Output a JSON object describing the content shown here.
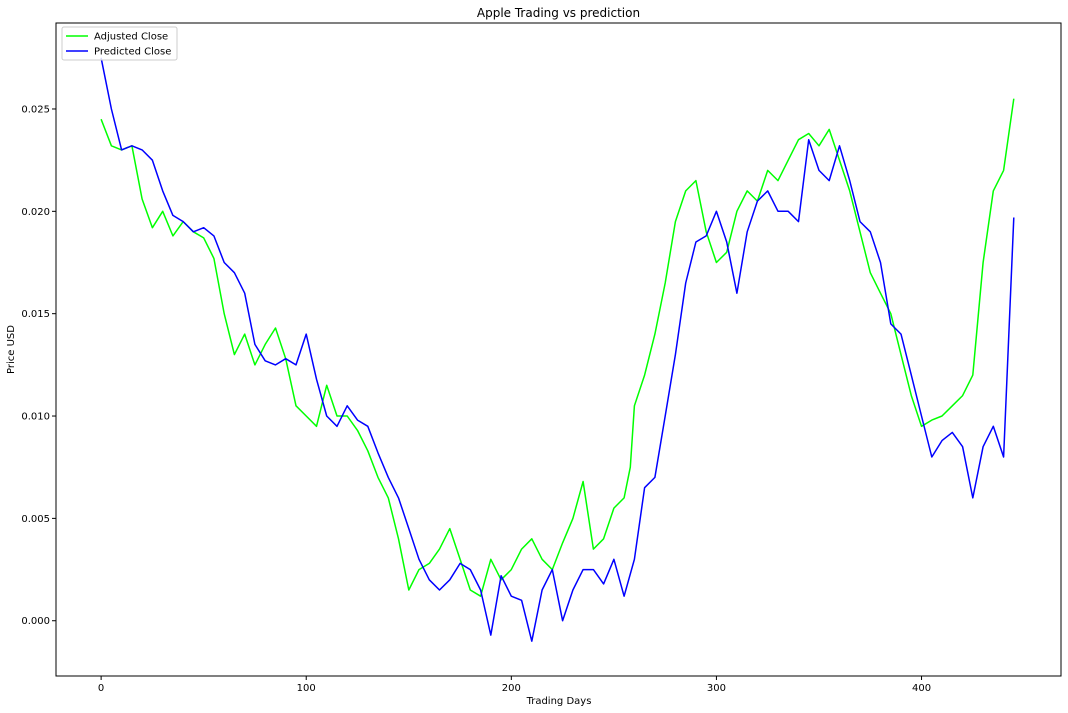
{
  "chart_data": {
    "type": "line",
    "title": "Apple Trading vs prediction",
    "xlabel": "Trading Days",
    "ylabel": "Price USD",
    "xlim": [
      -22,
      468
    ],
    "ylim": [
      -0.0027,
      0.0292
    ],
    "xticks": [
      0,
      100,
      200,
      300,
      400
    ],
    "yticks": [
      0.0,
      0.005,
      0.01,
      0.015,
      0.02,
      0.025
    ],
    "xtick_labels": [
      "0",
      "100",
      "200",
      "300",
      "400"
    ],
    "ytick_labels": [
      "0.000",
      "0.005",
      "0.010",
      "0.015",
      "0.020",
      "0.025"
    ],
    "legend_position": "upper-left",
    "grid": false,
    "series": [
      {
        "name": "Adjusted Close",
        "color": "#00ff00",
        "x": [
          0,
          5,
          10,
          15,
          20,
          25,
          30,
          35,
          40,
          45,
          50,
          55,
          60,
          65,
          70,
          75,
          80,
          85,
          90,
          95,
          100,
          105,
          110,
          115,
          120,
          125,
          130,
          135,
          140,
          145,
          150,
          155,
          160,
          165,
          170,
          175,
          180,
          185,
          190,
          195,
          200,
          205,
          210,
          215,
          220,
          225,
          230,
          235,
          240,
          245,
          250,
          255,
          258,
          260,
          265,
          270,
          275,
          280,
          285,
          290,
          295,
          300,
          305,
          310,
          315,
          320,
          325,
          330,
          335,
          340,
          345,
          350,
          355,
          360,
          365,
          370,
          375,
          380,
          385,
          390,
          395,
          400,
          405,
          410,
          415,
          420,
          425,
          430,
          435,
          440,
          445
        ],
        "y": [
          0.0245,
          0.0232,
          0.023,
          0.0232,
          0.0206,
          0.0192,
          0.02,
          0.0188,
          0.0195,
          0.019,
          0.0187,
          0.0177,
          0.015,
          0.013,
          0.014,
          0.0125,
          0.0135,
          0.0143,
          0.0128,
          0.0105,
          0.01,
          0.0095,
          0.0115,
          0.01,
          0.01,
          0.0093,
          0.0083,
          0.007,
          0.006,
          0.004,
          0.0015,
          0.0025,
          0.0028,
          0.0035,
          0.0045,
          0.003,
          0.0015,
          0.0012,
          0.003,
          0.002,
          0.0025,
          0.0035,
          0.004,
          0.003,
          0.0025,
          0.0038,
          0.005,
          0.0068,
          0.0035,
          0.004,
          0.0055,
          0.006,
          0.0075,
          0.0105,
          0.012,
          0.014,
          0.0165,
          0.0195,
          0.021,
          0.0215,
          0.019,
          0.0175,
          0.018,
          0.02,
          0.021,
          0.0205,
          0.022,
          0.0215,
          0.0225,
          0.0235,
          0.0238,
          0.0232,
          0.024,
          0.0225,
          0.021,
          0.019,
          0.017,
          0.016,
          0.015,
          0.013,
          0.011,
          0.0095,
          0.0098,
          0.01,
          0.0105,
          0.011,
          0.012,
          0.0175,
          0.021,
          0.022,
          0.0255
        ]
      },
      {
        "name": "Predicted Close",
        "color": "#0000ff",
        "x": [
          0,
          5,
          10,
          15,
          20,
          25,
          30,
          35,
          40,
          45,
          50,
          55,
          60,
          65,
          70,
          75,
          80,
          85,
          90,
          95,
          100,
          105,
          110,
          115,
          120,
          125,
          130,
          135,
          140,
          145,
          150,
          155,
          160,
          165,
          170,
          175,
          180,
          185,
          190,
          195,
          200,
          205,
          210,
          215,
          220,
          225,
          230,
          235,
          240,
          245,
          250,
          255,
          260,
          265,
          270,
          275,
          280,
          285,
          290,
          295,
          300,
          305,
          310,
          315,
          320,
          325,
          330,
          335,
          340,
          345,
          350,
          355,
          360,
          365,
          370,
          375,
          380,
          385,
          390,
          395,
          400,
          405,
          410,
          415,
          420,
          425,
          430,
          435,
          440,
          445
        ],
        "y": [
          0.0275,
          0.025,
          0.023,
          0.0232,
          0.023,
          0.0225,
          0.021,
          0.0198,
          0.0195,
          0.019,
          0.0192,
          0.0188,
          0.0175,
          0.017,
          0.016,
          0.0135,
          0.0127,
          0.0125,
          0.0128,
          0.0125,
          0.014,
          0.0118,
          0.01,
          0.0095,
          0.0105,
          0.0098,
          0.0095,
          0.0082,
          0.007,
          0.006,
          0.0045,
          0.003,
          0.002,
          0.0015,
          0.002,
          0.0028,
          0.0025,
          0.0015,
          -0.0007,
          0.0022,
          0.0012,
          0.001,
          -0.001,
          0.0015,
          0.0025,
          0.0,
          0.0015,
          0.0025,
          0.0025,
          0.0018,
          0.003,
          0.0012,
          0.003,
          0.0065,
          0.007,
          0.01,
          0.013,
          0.0165,
          0.0185,
          0.0188,
          0.02,
          0.0185,
          0.016,
          0.019,
          0.0205,
          0.021,
          0.02,
          0.02,
          0.0195,
          0.0235,
          0.022,
          0.0215,
          0.0232,
          0.0215,
          0.0195,
          0.019,
          0.0175,
          0.0145,
          0.014,
          0.012,
          0.01,
          0.008,
          0.0088,
          0.0092,
          0.0085,
          0.006,
          0.0085,
          0.0095,
          0.008,
          0.0197
        ]
      }
    ]
  }
}
